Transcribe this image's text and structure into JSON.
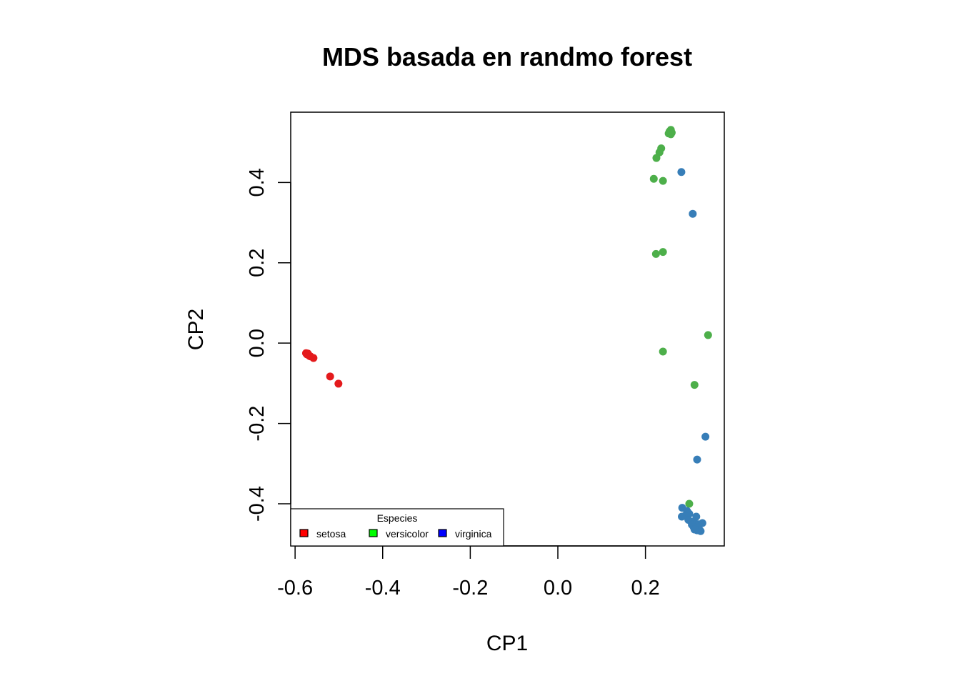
{
  "chart_data": {
    "type": "scatter",
    "title": "MDS basada en randmo forest",
    "xlabel": "CP1",
    "ylabel": "CP2",
    "xlim": [
      -0.61,
      0.38
    ],
    "ylim": [
      -0.505,
      0.575
    ],
    "x_ticks": [
      -0.6,
      -0.4,
      -0.2,
      0.0,
      0.2
    ],
    "x_tick_labels": [
      "-0.6",
      "-0.4",
      "-0.2",
      "0.0",
      "0.2"
    ],
    "y_ticks": [
      -0.4,
      -0.2,
      0.0,
      0.2,
      0.4
    ],
    "y_tick_labels": [
      "-0.4",
      "-0.2",
      "0.0",
      "0.2",
      "0.4"
    ],
    "grid": false,
    "legend": {
      "title": "Especies",
      "placement": "bottom-left",
      "entries": [
        {
          "label": "setosa",
          "color": "#FF0000"
        },
        {
          "label": "versicolor",
          "color": "#00FF00"
        },
        {
          "label": "virginica",
          "color": "#0000FF"
        }
      ]
    },
    "series": [
      {
        "name": "setosa",
        "color": "#E41A1C",
        "points": [
          {
            "x": -0.575,
            "y": -0.025
          },
          {
            "x": -0.573,
            "y": -0.028
          },
          {
            "x": -0.571,
            "y": -0.026
          },
          {
            "x": -0.569,
            "y": -0.03
          },
          {
            "x": -0.567,
            "y": -0.032
          },
          {
            "x": -0.565,
            "y": -0.033
          },
          {
            "x": -0.558,
            "y": -0.037
          },
          {
            "x": -0.52,
            "y": -0.083
          },
          {
            "x": -0.501,
            "y": -0.101
          }
        ]
      },
      {
        "name": "versicolor",
        "color": "#4DAF4A",
        "points": [
          {
            "x": 0.258,
            "y": 0.531
          },
          {
            "x": 0.255,
            "y": 0.527
          },
          {
            "x": 0.26,
            "y": 0.524
          },
          {
            "x": 0.253,
            "y": 0.522
          },
          {
            "x": 0.258,
            "y": 0.52
          },
          {
            "x": 0.236,
            "y": 0.485
          },
          {
            "x": 0.232,
            "y": 0.475
          },
          {
            "x": 0.225,
            "y": 0.461
          },
          {
            "x": 0.219,
            "y": 0.409
          },
          {
            "x": 0.24,
            "y": 0.404
          },
          {
            "x": 0.224,
            "y": 0.222
          },
          {
            "x": 0.24,
            "y": 0.227
          },
          {
            "x": 0.343,
            "y": 0.02
          },
          {
            "x": 0.24,
            "y": -0.021
          },
          {
            "x": 0.312,
            "y": -0.104
          },
          {
            "x": 0.3,
            "y": -0.4
          }
        ]
      },
      {
        "name": "virginica",
        "color": "#377EB8",
        "points": [
          {
            "x": 0.282,
            "y": 0.426
          },
          {
            "x": 0.308,
            "y": 0.322
          },
          {
            "x": 0.337,
            "y": -0.233
          },
          {
            "x": 0.318,
            "y": -0.29
          },
          {
            "x": 0.284,
            "y": -0.41
          },
          {
            "x": 0.295,
            "y": -0.418
          },
          {
            "x": 0.3,
            "y": -0.425
          },
          {
            "x": 0.29,
            "y": -0.43
          },
          {
            "x": 0.283,
            "y": -0.432
          },
          {
            "x": 0.316,
            "y": -0.432
          },
          {
            "x": 0.298,
            "y": -0.44
          },
          {
            "x": 0.305,
            "y": -0.445
          },
          {
            "x": 0.312,
            "y": -0.448
          },
          {
            "x": 0.32,
            "y": -0.451
          },
          {
            "x": 0.33,
            "y": -0.448
          },
          {
            "x": 0.306,
            "y": -0.452
          },
          {
            "x": 0.31,
            "y": -0.458
          },
          {
            "x": 0.315,
            "y": -0.46
          },
          {
            "x": 0.322,
            "y": -0.462
          },
          {
            "x": 0.318,
            "y": -0.466
          },
          {
            "x": 0.326,
            "y": -0.468
          },
          {
            "x": 0.312,
            "y": -0.464
          }
        ]
      }
    ]
  }
}
